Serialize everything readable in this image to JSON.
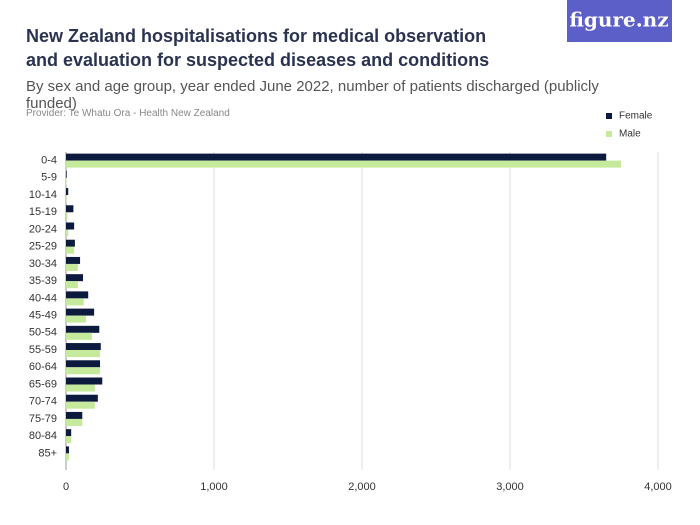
{
  "logo": "figure.nz",
  "chart_data": {
    "type": "hbar",
    "title": "New Zealand hospitalisations for medical observation and evaluation for suspected diseases and conditions",
    "subtitle": "By sex and age group, year ended June 2022, number of patients discharged (publicly funded)",
    "provider": "Provider: Te Whatu Ora - Health New Zealand",
    "categories": [
      "0-4",
      "5-9",
      "10-14",
      "15-19",
      "20-24",
      "25-29",
      "30-34",
      "35-39",
      "40-44",
      "45-49",
      "50-54",
      "55-59",
      "60-64",
      "65-69",
      "70-74",
      "75-79",
      "80-84",
      "85+"
    ],
    "series": [
      {
        "name": "Female",
        "color": "#0c1a3e",
        "values": [
          3650,
          5,
          15,
          50,
          55,
          60,
          95,
          115,
          150,
          190,
          225,
          235,
          230,
          245,
          215,
          110,
          35,
          20
        ]
      },
      {
        "name": "Male",
        "color": "#c6ea9c",
        "values": [
          3750,
          3,
          2,
          10,
          15,
          55,
          80,
          80,
          120,
          135,
          175,
          230,
          230,
          195,
          195,
          110,
          35,
          20
        ]
      }
    ],
    "xlim": [
      0,
      4000
    ],
    "xticks": [
      0,
      {
        "value": 1000,
        "label": "1,000"
      },
      {
        "value": 2000,
        "label": "2,000"
      },
      {
        "value": 3000,
        "label": "3,000"
      },
      {
        "value": 4000,
        "label": "4,000"
      }
    ],
    "grid": true,
    "legend": "top-right"
  }
}
